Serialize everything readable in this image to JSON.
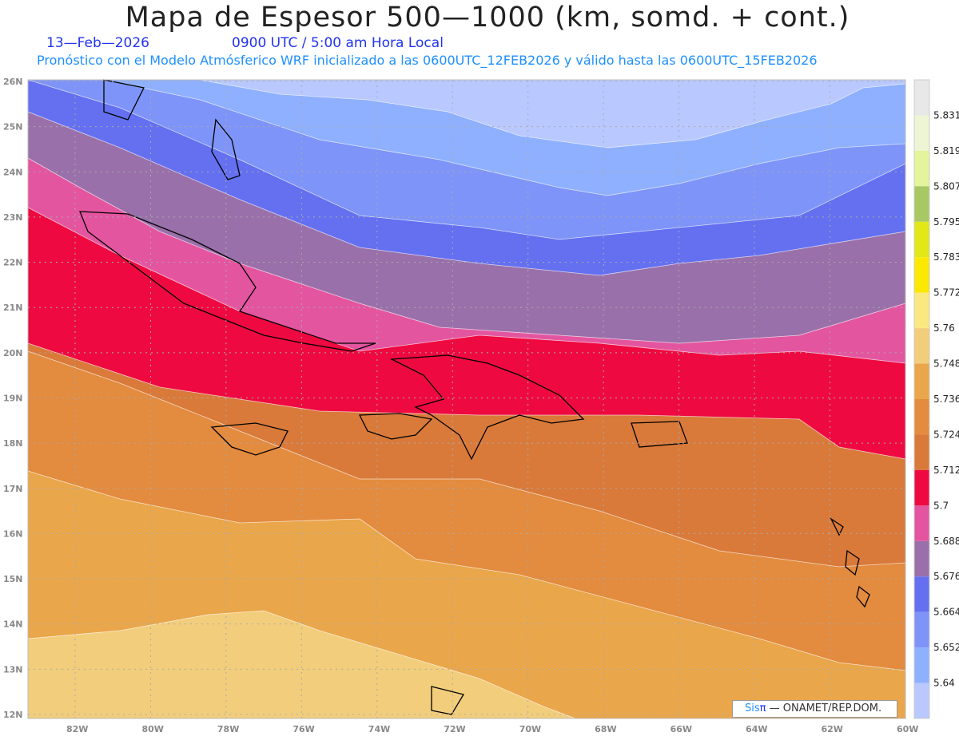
{
  "header": {
    "title": "Mapa de Espesor 500—1000 (km, somd. + cont.)",
    "date": "13—Feb—2026",
    "time": "0900 UTC / 5:00 am Hora Local",
    "subtitle": "Pronóstico con el Modelo Atmósferico WRF inicializado a las 0600UTC_12FEB2026 y válido hasta las  0600UTC_15FEB2026"
  },
  "map": {
    "lat_ticks": [
      "26N",
      "25N",
      "24N",
      "23N",
      "22N",
      "21N",
      "20N",
      "19N",
      "18N",
      "17N",
      "16N",
      "15N",
      "14N",
      "13N",
      "12N"
    ],
    "lon_ticks": [
      "82W",
      "80W",
      "78W",
      "76W",
      "74W",
      "72W",
      "70W",
      "68W",
      "66W",
      "64W",
      "62W",
      "60W"
    ]
  },
  "colorbar": {
    "labels": [
      "5.831",
      "5.819",
      "5.807",
      "5.795",
      "5.783",
      "5.772",
      "5.76",
      "5.748",
      "5.736",
      "5.724",
      "5.712",
      "5.7",
      "5.688",
      "5.676",
      "5.664",
      "5.652",
      "5.64"
    ],
    "colors": [
      "#e8e8e8",
      "#eef5d4",
      "#e4f49c",
      "#a8c864",
      "#e0e818",
      "#fce800",
      "#fce880",
      "#f2cd7c",
      "#eaa64a",
      "#e38b3e",
      "#d97a3a",
      "#ee0a40",
      "#e455a0",
      "#9a70aa",
      "#6470f0",
      "#7e94f8",
      "#8fb0ff",
      "#b9c8ff"
    ]
  },
  "credit": {
    "sis": "Sis",
    "pi": "π",
    "rest": " —  ONAMET/REP.DOM."
  }
}
